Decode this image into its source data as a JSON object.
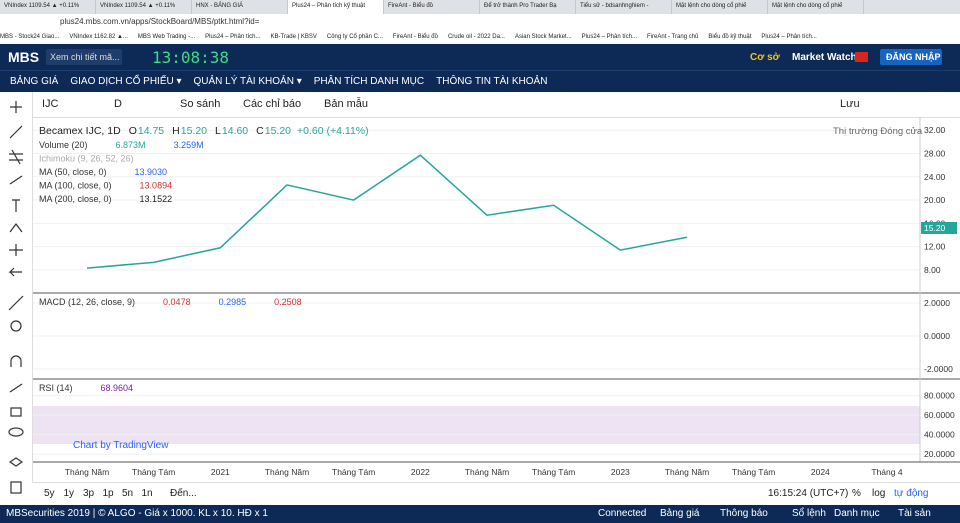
{
  "browser": {
    "tabs": [
      "VNIndex 1109.54 ▲ +0.11%",
      "VNIndex 1109.54 ▲ +0.11%",
      "HNX - BẢNG GIÁ",
      "Plus24 – Phân tích kỹ thuật",
      "FireAnt - Biểu đồ",
      "Để trở thành Pro Trader Bạ",
      "Tiểu sử - bdsanhnghiem -",
      "Mặt lệnh cho dòng cổ phiế",
      "Mặt lệnh cho dòng cổ phiế"
    ],
    "url": "plus24.mbs.com.vn/apps/StockBoard/MBS/ptkt.html?id=",
    "bookmarks": [
      "MBS - Stock24 Giao...",
      "VNIndex 1162.82 ▲...",
      "MBS Web Trading -...",
      "Plus24 – Phân tích...",
      "KB-Trade | KBSV",
      "Công ty Cổ phần C...",
      "FireAnt - Biểu đồ",
      "Crude oil - 2022 Da...",
      "Asian Stock Market...",
      "Plus24 – Phân tích...",
      "FireAnt - Trang chủ",
      "Biểu đồ kỹ thuật",
      "Plus24 – Phân tích..."
    ]
  },
  "header": {
    "logo": "MBS",
    "search": "Xem chi tiết mã...",
    "clock": "13:08:38",
    "account_type": "Cơ sở",
    "market_watch": "Market Watch",
    "login": "ĐĂNG NHẬP"
  },
  "nav": [
    "BẢNG GIÁ",
    "GIAO DỊCH CỔ PHIẾU ▾",
    "QUẢN LÝ TÀI KHOẢN ▾",
    "PHÂN TÍCH DANH MỤC",
    "THÔNG TIN TÀI KHOẢN"
  ],
  "toolbar": {
    "symbol": "IJC",
    "interval": "D",
    "compare": "So sánh",
    "indicators": "Các chỉ báo",
    "templates": "Bản mẫu",
    "save": "Lưu"
  },
  "chart_data": {
    "type": "line",
    "title": "Becamex IJC, 1D",
    "market_status": "Thị trường Đóng cửa",
    "ohlc": [
      {
        "label": "O",
        "value": "14.75"
      },
      {
        "label": "H",
        "value": "15.20"
      },
      {
        "label": "L",
        "value": "14.60"
      },
      {
        "label": "C",
        "value": "15.20"
      }
    ],
    "change": "+0.60 (+4.11%)",
    "studies": [
      {
        "name": "Volume (20)",
        "values": [
          "6.873M",
          "3.259M"
        ],
        "colors": [
          "#26a69a",
          "#2962ff"
        ]
      },
      {
        "name": "Ichimoku (9, 26, 52, 26)",
        "values": [],
        "colors": []
      },
      {
        "name": "MA (50, close, 0)",
        "values": [
          "13.9030"
        ],
        "colors": [
          "#2962ff"
        ]
      },
      {
        "name": "MA (100, close, 0)",
        "values": [
          "13.0894"
        ],
        "colors": [
          "#d32f2f"
        ]
      },
      {
        "name": "MA (200, close, 0)",
        "values": [
          "13.1522"
        ],
        "colors": [
          "#222222"
        ]
      }
    ],
    "categories": [
      "Tháng Năm",
      "Tháng Tám",
      "2021",
      "Tháng Năm",
      "Tháng Tám",
      "2022",
      "Tháng Năm",
      "Tháng Tám",
      "2023",
      "Tháng Năm",
      "Tháng Tám",
      "2024",
      "Tháng 4"
    ],
    "series": [
      {
        "name": "IJC",
        "color": "#26a69a",
        "values": [
          8.3,
          9.3,
          11.8,
          22.6,
          20,
          27.7,
          17.4,
          19.1,
          11.4,
          13.6,
          null,
          null,
          null
        ]
      }
    ],
    "ylim": [
      4.2,
      34.1
    ],
    "yticks": [
      {
        "value": 32,
        "label": "32.00"
      },
      {
        "value": 28,
        "label": "28.00"
      },
      {
        "value": 24,
        "label": "24.00"
      },
      {
        "value": 20,
        "label": "20.00"
      },
      {
        "value": 16,
        "label": "16.00"
      },
      {
        "value": 12,
        "label": "12.00"
      },
      {
        "value": 8,
        "label": "8.00"
      }
    ],
    "macd": {
      "name": "MACD (12, 26, close, 9)",
      "values": [
        "0.0478",
        "0.2985",
        "0.2508"
      ],
      "colors": [
        "#d32f2f",
        "#2962ff",
        "#d32f2f"
      ],
      "ylim": [
        -2.55,
        2.55
      ],
      "yticks": [
        {
          "value": 2,
          "label": "2.0000"
        },
        {
          "value": 0,
          "label": "0.0000"
        },
        {
          "value": -2,
          "label": "-2.0000"
        }
      ]
    },
    "rsi": {
      "name": "RSI (14)",
      "values": [
        "68.9604"
      ],
      "colors": [
        "#7b1fa2"
      ],
      "ylim": [
        12,
        96
      ],
      "yticks": [
        {
          "value": 80,
          "label": "80.0000"
        },
        {
          "value": 60,
          "label": "60.0000"
        },
        {
          "value": 40,
          "label": "40.0000"
        },
        {
          "value": 20,
          "label": "20.0000"
        }
      ]
    },
    "watermark": "Chart by TradingView"
  },
  "range_bar": {
    "ranges": [
      "5y",
      "1y",
      "3p",
      "1p",
      "5n",
      "1n"
    ],
    "goto": "Đến...",
    "time": "16:15:24 (UTC+7)",
    "percent": "%",
    "log": "log",
    "auto": "tự động"
  },
  "status": {
    "copyright": "MBSecurities 2019 | © ALGO - Giá x 1000. KL x 10. HĐ x 1",
    "connection": "Connected",
    "items": [
      "Bảng giá",
      "Thông báo",
      "Sổ lệnh",
      "Danh mục",
      "Tài sản"
    ]
  }
}
